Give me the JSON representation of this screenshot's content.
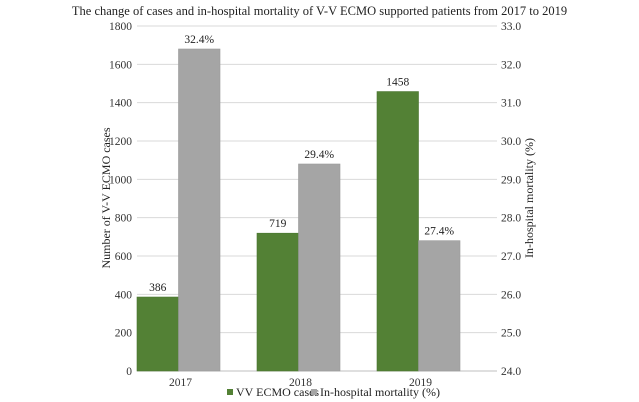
{
  "chart_data": {
    "type": "bar",
    "title": "The change of cases and in-hospital mortality of V-V ECMO supported patients from 2017 to 2019",
    "categories": [
      "2017",
      "2018",
      "2019"
    ],
    "series": [
      {
        "name": "VV ECMO cases",
        "axis": "left",
        "color": "#538135",
        "values": [
          386,
          719,
          1458
        ],
        "labels": [
          "386",
          "719",
          "1458"
        ]
      },
      {
        "name": "In-hospital mortality (%)",
        "axis": "right",
        "color": "#a5a5a5",
        "values": [
          32.4,
          29.4,
          27.4
        ],
        "labels": [
          "32.4%",
          "29.4%",
          "27.4%"
        ]
      }
    ],
    "ylabel": "Number of V-V ECMO cases",
    "ylim": [
      0,
      1800
    ],
    "yticks": [
      "0",
      "200",
      "400",
      "600",
      "800",
      "1000",
      "1200",
      "1400",
      "1600",
      "1800"
    ],
    "y2label": "In-hospital mortality (%)",
    "y2lim": [
      24.0,
      33.0
    ],
    "y2ticks": [
      "24.0",
      "25.0",
      "26.0",
      "27.0",
      "28.0",
      "29.0",
      "30.0",
      "31.0",
      "32.0",
      "33.0"
    ],
    "xlabel": "",
    "grid": true,
    "gridColor": "#d9d9d9",
    "legend": "bottom"
  }
}
